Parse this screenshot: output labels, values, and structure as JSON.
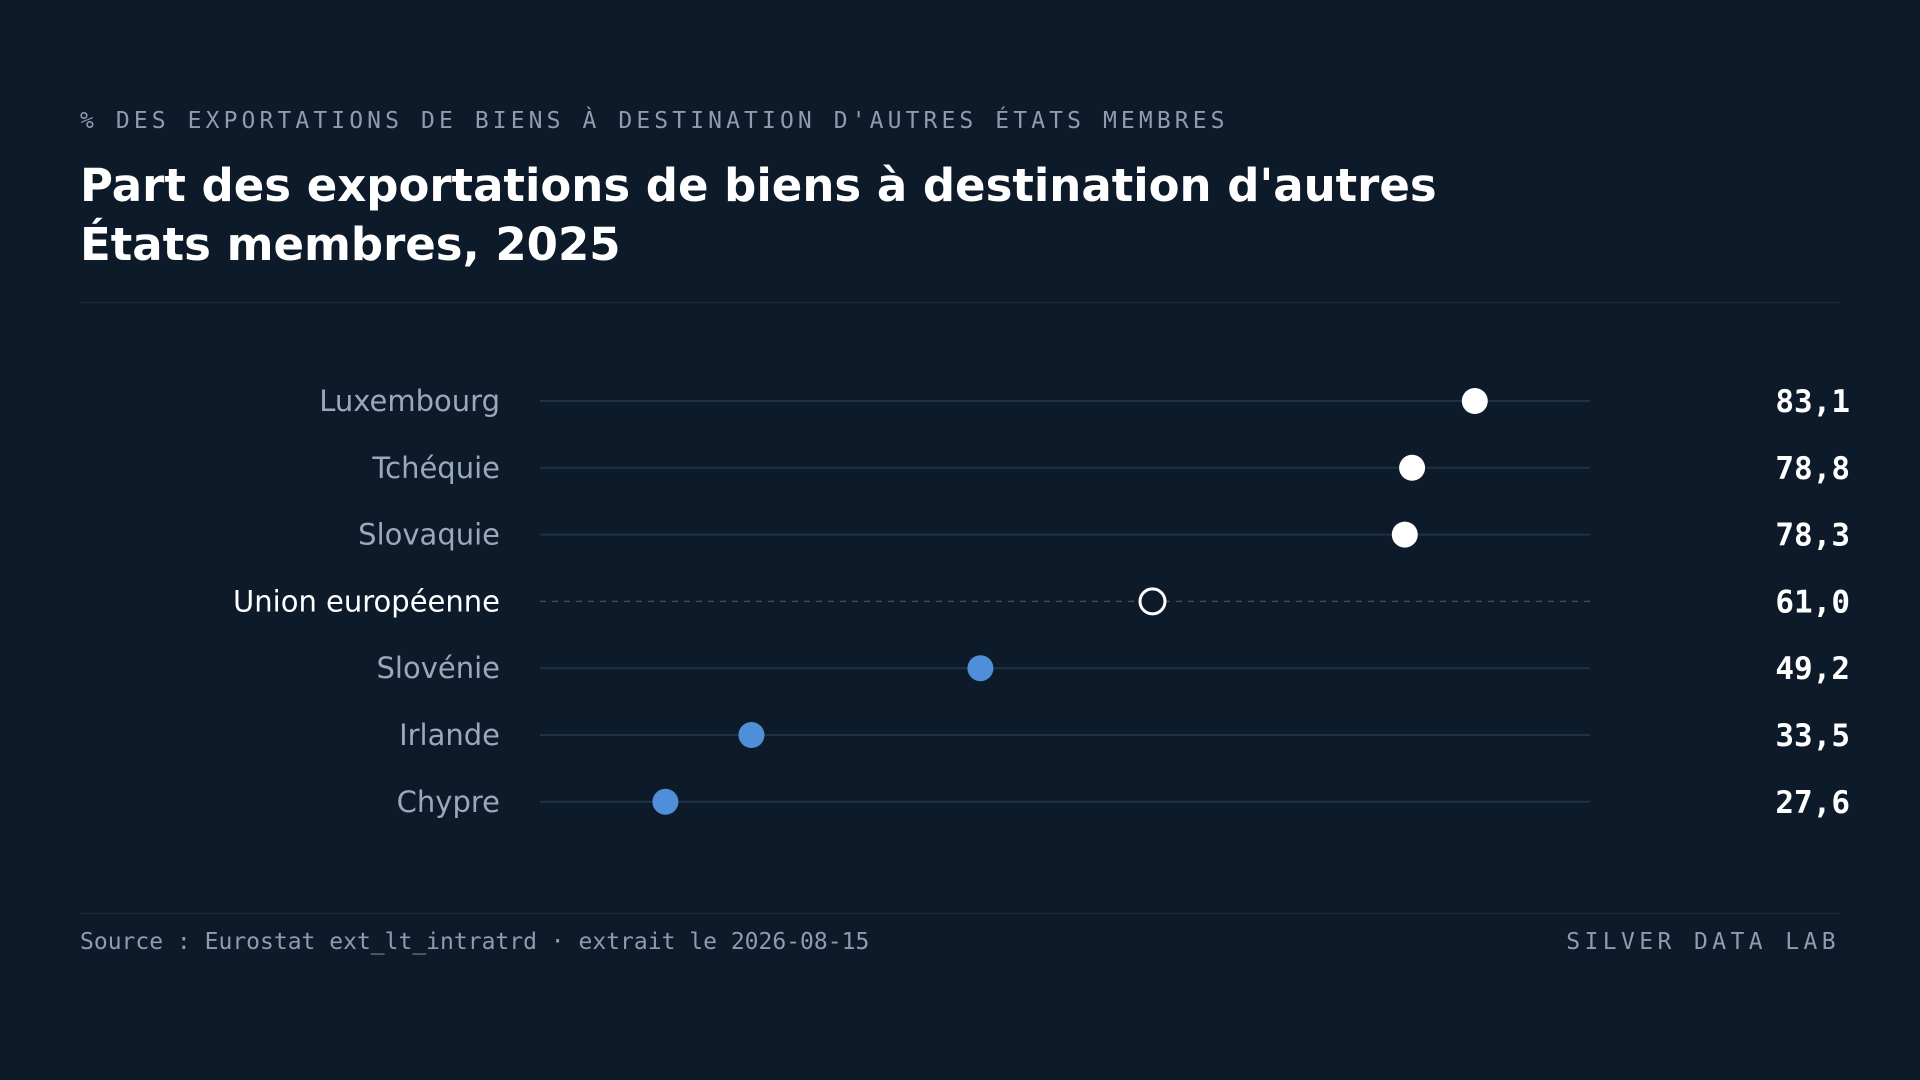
{
  "header": {
    "kicker": "% DES EXPORTATIONS DE BIENS À DESTINATION D'AUTRES ÉTATS MEMBRES",
    "title": "Part des exportations de biens à destination d'autres États membres, 2025"
  },
  "footer": {
    "source": "Source : Eurostat ext_lt_intratrd · extrait le 2026-08-15",
    "brand": "SILVER DATA LAB"
  },
  "colors": {
    "background": "#0d1a2a",
    "above_average": "#ffffff",
    "below_average": "#4f8fd9",
    "average_marker": "#ffffff",
    "track": "#1e3246"
  },
  "chart_data": {
    "type": "scatter",
    "title": "Part des exportations de biens à destination d'autres États membres, 2025",
    "xlim": [
      19,
      91
    ],
    "grid": false,
    "rows": [
      {
        "label": "Luxembourg",
        "value": 83.1,
        "display": "83,1",
        "group": "above"
      },
      {
        "label": "Tchéquie",
        "value": 78.8,
        "display": "78,8",
        "group": "above"
      },
      {
        "label": "Slovaquie",
        "value": 78.3,
        "display": "78,3",
        "group": "above"
      },
      {
        "label": "Union européenne",
        "value": 61.0,
        "display": "61,0",
        "group": "average"
      },
      {
        "label": "Slovénie",
        "value": 49.2,
        "display": "49,2",
        "group": "below"
      },
      {
        "label": "Irlande",
        "value": 33.5,
        "display": "33,5",
        "group": "below"
      },
      {
        "label": "Chypre",
        "value": 27.6,
        "display": "27,6",
        "group": "below"
      }
    ]
  }
}
